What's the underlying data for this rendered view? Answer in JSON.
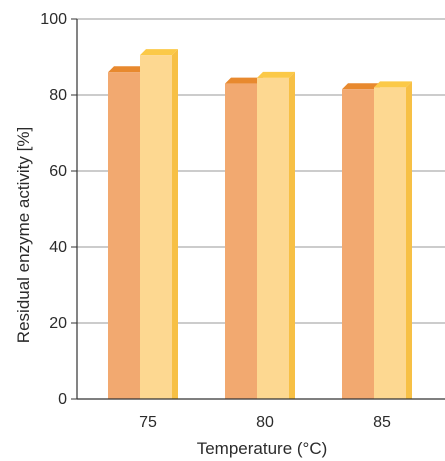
{
  "chart_data": {
    "type": "bar",
    "categories": [
      "75",
      "80",
      "85"
    ],
    "series": [
      {
        "values": [
          86,
          83,
          81.5
        ],
        "color": "#f2a970",
        "side_color": "#e8913f",
        "top_color": "#e8892e"
      },
      {
        "values": [
          90.5,
          84.5,
          82
        ],
        "color": "#fdd891",
        "side_color": "#f7c045",
        "top_color": "#fbc948"
      }
    ],
    "xlabel": "Temperature (°C)",
    "ylabel": "Residual enzyme activity [%]",
    "ylim": [
      0,
      100
    ],
    "yticks": [
      "0",
      "20",
      "40",
      "60",
      "80",
      "100"
    ],
    "grid": true,
    "gridline_color": "#9a9a9a",
    "axis_color": "#333333"
  }
}
